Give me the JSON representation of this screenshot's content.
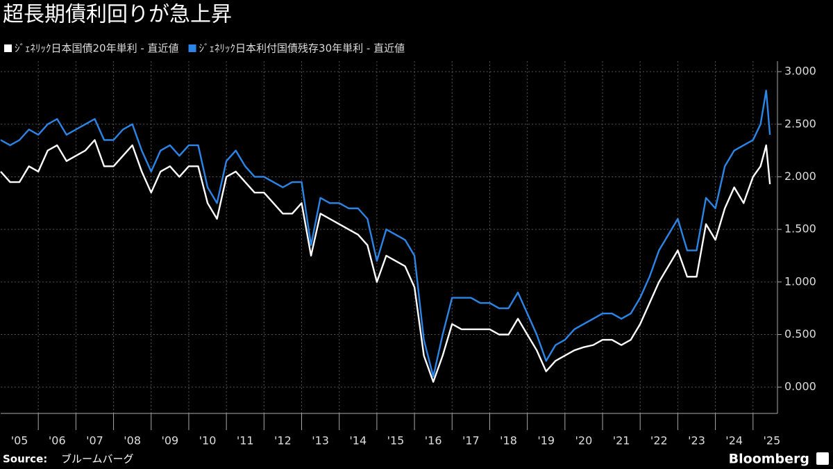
{
  "chart_data": {
    "type": "line",
    "title": "超長期債利回りが急上昇",
    "source_label": "Source:",
    "source": "ブルームバーグ",
    "brand": "Bloomberg",
    "grid": true,
    "background": "#000000",
    "xlim": [
      2005,
      2025.65
    ],
    "ylim": [
      -0.25,
      3.1
    ],
    "xticks": [
      {
        "value": 2005,
        "label": "'05"
      },
      {
        "value": 2006,
        "label": "'06"
      },
      {
        "value": 2007,
        "label": "'07"
      },
      {
        "value": 2008,
        "label": "'08"
      },
      {
        "value": 2009,
        "label": "'09"
      },
      {
        "value": 2010,
        "label": "'10"
      },
      {
        "value": 2011,
        "label": "'11"
      },
      {
        "value": 2012,
        "label": "'12"
      },
      {
        "value": 2013,
        "label": "'13"
      },
      {
        "value": 2014,
        "label": "'14"
      },
      {
        "value": 2015,
        "label": "'15"
      },
      {
        "value": 2016,
        "label": "'16"
      },
      {
        "value": 2017,
        "label": "'17"
      },
      {
        "value": 2018,
        "label": "'18"
      },
      {
        "value": 2019,
        "label": "'19"
      },
      {
        "value": 2020,
        "label": "'20"
      },
      {
        "value": 2021,
        "label": "'21"
      },
      {
        "value": 2022,
        "label": "'22"
      },
      {
        "value": 2023,
        "label": "'23"
      },
      {
        "value": 2024,
        "label": "'24"
      },
      {
        "value": 2025,
        "label": "'25"
      }
    ],
    "yticks": [
      {
        "value": 0,
        "label": "0.000"
      },
      {
        "value": 0.5,
        "label": "0.500"
      },
      {
        "value": 1,
        "label": "1.000"
      },
      {
        "value": 1.5,
        "label": "1.500"
      },
      {
        "value": 2,
        "label": "2.000"
      },
      {
        "value": 2.5,
        "label": "2.500"
      },
      {
        "value": 3,
        "label": "3.000"
      }
    ],
    "x": [
      2005,
      2005.25,
      2005.5,
      2005.75,
      2006,
      2006.25,
      2006.5,
      2006.75,
      2007,
      2007.25,
      2007.5,
      2007.75,
      2008,
      2008.25,
      2008.5,
      2008.75,
      2009,
      2009.25,
      2009.5,
      2009.75,
      2010,
      2010.25,
      2010.5,
      2010.75,
      2011,
      2011.25,
      2011.5,
      2011.75,
      2012,
      2012.25,
      2012.5,
      2012.75,
      2013,
      2013.25,
      2013.5,
      2013.75,
      2014,
      2014.25,
      2014.5,
      2014.75,
      2015,
      2015.25,
      2015.5,
      2015.75,
      2016,
      2016.25,
      2016.5,
      2016.75,
      2017,
      2017.25,
      2017.5,
      2017.75,
      2018,
      2018.25,
      2018.5,
      2018.75,
      2019,
      2019.25,
      2019.5,
      2019.75,
      2020,
      2020.25,
      2020.5,
      2020.75,
      2021,
      2021.25,
      2021.5,
      2021.75,
      2022,
      2022.25,
      2022.5,
      2022.75,
      2023,
      2023.25,
      2023.5,
      2023.75,
      2024,
      2024.25,
      2024.5,
      2024.75,
      2025,
      2025.2,
      2025.35,
      2025.45
    ],
    "series": [
      {
        "name": "ｼﾞｪﾈﾘｯｸ日本国債20年単利 - 直近値",
        "color": "#ffffff",
        "values": [
          2.05,
          1.95,
          1.95,
          2.1,
          2.05,
          2.25,
          2.3,
          2.15,
          2.2,
          2.25,
          2.35,
          2.1,
          2.1,
          2.2,
          2.3,
          2.05,
          1.85,
          2.05,
          2.1,
          2.0,
          2.1,
          2.1,
          1.75,
          1.6,
          2.0,
          2.05,
          1.95,
          1.85,
          1.85,
          1.75,
          1.65,
          1.65,
          1.75,
          1.25,
          1.65,
          1.6,
          1.55,
          1.5,
          1.45,
          1.35,
          1.0,
          1.25,
          1.2,
          1.15,
          0.95,
          0.3,
          0.05,
          0.3,
          0.6,
          0.55,
          0.55,
          0.55,
          0.55,
          0.5,
          0.5,
          0.65,
          0.5,
          0.35,
          0.15,
          0.25,
          0.3,
          0.35,
          0.38,
          0.4,
          0.45,
          0.45,
          0.4,
          0.45,
          0.6,
          0.8,
          1.0,
          1.15,
          1.3,
          1.05,
          1.05,
          1.55,
          1.4,
          1.7,
          1.9,
          1.75,
          2.0,
          2.1,
          2.3,
          1.93
        ]
      },
      {
        "name": "ｼﾞｪﾈﾘｯｸ日本利付国債残存30年単利 - 直近値",
        "color": "#2b86e8",
        "values": [
          2.35,
          2.3,
          2.35,
          2.45,
          2.4,
          2.5,
          2.55,
          2.4,
          2.45,
          2.5,
          2.55,
          2.35,
          2.35,
          2.45,
          2.5,
          2.25,
          2.05,
          2.25,
          2.3,
          2.2,
          2.3,
          2.3,
          1.9,
          1.75,
          2.15,
          2.25,
          2.1,
          2.0,
          2.0,
          1.95,
          1.9,
          1.95,
          1.95,
          1.35,
          1.8,
          1.75,
          1.75,
          1.7,
          1.7,
          1.6,
          1.2,
          1.5,
          1.45,
          1.4,
          1.25,
          0.45,
          0.1,
          0.5,
          0.85,
          0.85,
          0.85,
          0.8,
          0.8,
          0.75,
          0.75,
          0.9,
          0.7,
          0.5,
          0.25,
          0.4,
          0.45,
          0.55,
          0.6,
          0.65,
          0.7,
          0.7,
          0.65,
          0.7,
          0.85,
          1.05,
          1.3,
          1.45,
          1.6,
          1.3,
          1.3,
          1.8,
          1.7,
          2.1,
          2.25,
          2.3,
          2.35,
          2.5,
          2.82,
          2.4
        ]
      }
    ]
  }
}
